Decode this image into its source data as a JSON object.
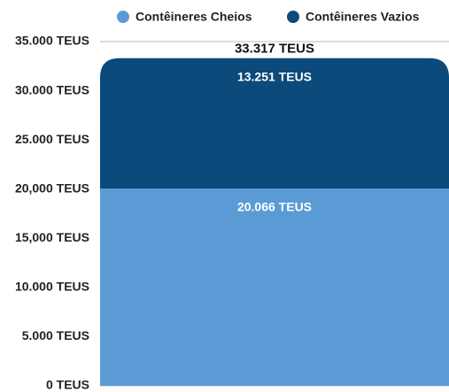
{
  "chart_data": {
    "type": "stacked_bar",
    "categories": [
      null
    ],
    "series": [
      {
        "name": "Contêineres Cheios",
        "color": "#5b9bd5",
        "values": [
          20066
        ],
        "value_labels": [
          "20.066 TEUS"
        ]
      },
      {
        "name": "Contêineres Vazios",
        "color": "#0b4a7b",
        "values": [
          13251
        ],
        "value_labels": [
          "13.251 TEUS"
        ]
      }
    ],
    "total_labels": [
      "33.317 TEUS"
    ],
    "ylim": [
      0,
      35000
    ],
    "yticks": [
      {
        "value": 0,
        "label": "0 TEUS"
      },
      {
        "value": 5000,
        "label": "5.000 TEUS"
      },
      {
        "value": 10000,
        "label": "10.000 TEUS"
      },
      {
        "value": 15000,
        "label": "15,000 TEUS"
      },
      {
        "value": 20000,
        "label": "20,000 TEUS"
      },
      {
        "value": 25000,
        "label": "25.000 TEUS"
      },
      {
        "value": 30000,
        "label": "30.000 TEUS"
      },
      {
        "value": 35000,
        "label": "35.000 TEUS"
      }
    ],
    "grid": true,
    "legend": "top"
  }
}
